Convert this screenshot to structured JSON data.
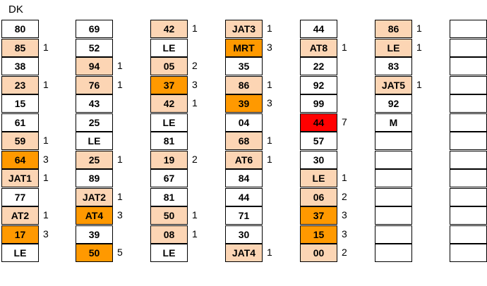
{
  "header": {
    "title": "DK"
  },
  "columns": [
    {
      "cells": [
        {
          "text": "80",
          "count": "",
          "level": "none"
        },
        {
          "text": "85",
          "count": "1",
          "level": "light"
        },
        {
          "text": "38",
          "count": "",
          "level": "none"
        },
        {
          "text": "23",
          "count": "1",
          "level": "light"
        },
        {
          "text": "15",
          "count": "",
          "level": "none"
        },
        {
          "text": "61",
          "count": "",
          "level": "none"
        },
        {
          "text": "59",
          "count": "1",
          "level": "light"
        },
        {
          "text": "64",
          "count": "3",
          "level": "orange"
        },
        {
          "text": "JAT1",
          "count": "1",
          "level": "light"
        },
        {
          "text": "77",
          "count": "",
          "level": "none"
        },
        {
          "text": "AT2",
          "count": "1",
          "level": "light"
        },
        {
          "text": "17",
          "count": "3",
          "level": "orange"
        },
        {
          "text": "LE",
          "count": "",
          "level": "none"
        }
      ]
    },
    {
      "cells": [
        {
          "text": "69",
          "count": "",
          "level": "none"
        },
        {
          "text": "52",
          "count": "",
          "level": "none"
        },
        {
          "text": "94",
          "count": "1",
          "level": "light"
        },
        {
          "text": "76",
          "count": "1",
          "level": "light"
        },
        {
          "text": "43",
          "count": "",
          "level": "none"
        },
        {
          "text": "25",
          "count": "",
          "level": "none"
        },
        {
          "text": "LE",
          "count": "",
          "level": "none"
        },
        {
          "text": "25",
          "count": "1",
          "level": "light"
        },
        {
          "text": "89",
          "count": "",
          "level": "none"
        },
        {
          "text": "JAT2",
          "count": "1",
          "level": "light"
        },
        {
          "text": "AT4",
          "count": "3",
          "level": "orange"
        },
        {
          "text": "39",
          "count": "",
          "level": "none"
        },
        {
          "text": "50",
          "count": "5",
          "level": "orange"
        }
      ]
    },
    {
      "cells": [
        {
          "text": "42",
          "count": "1",
          "level": "light"
        },
        {
          "text": "LE",
          "count": "",
          "level": "none"
        },
        {
          "text": "05",
          "count": "2",
          "level": "light"
        },
        {
          "text": "37",
          "count": "3",
          "level": "orange"
        },
        {
          "text": "42",
          "count": "1",
          "level": "light"
        },
        {
          "text": "LE",
          "count": "",
          "level": "none"
        },
        {
          "text": "81",
          "count": "",
          "level": "none"
        },
        {
          "text": "19",
          "count": "2",
          "level": "light"
        },
        {
          "text": "67",
          "count": "",
          "level": "none"
        },
        {
          "text": "81",
          "count": "",
          "level": "none"
        },
        {
          "text": "50",
          "count": "1",
          "level": "light"
        },
        {
          "text": "08",
          "count": "1",
          "level": "light"
        },
        {
          "text": "LE",
          "count": "",
          "level": "none"
        }
      ]
    },
    {
      "cells": [
        {
          "text": "JAT3",
          "count": "1",
          "level": "light"
        },
        {
          "text": "MRT",
          "count": "3",
          "level": "orange"
        },
        {
          "text": "35",
          "count": "",
          "level": "none"
        },
        {
          "text": "86",
          "count": "1",
          "level": "light"
        },
        {
          "text": "39",
          "count": "3",
          "level": "orange"
        },
        {
          "text": "04",
          "count": "",
          "level": "none"
        },
        {
          "text": "68",
          "count": "1",
          "level": "light"
        },
        {
          "text": "AT6",
          "count": "1",
          "level": "light"
        },
        {
          "text": "84",
          "count": "",
          "level": "none"
        },
        {
          "text": "44",
          "count": "",
          "level": "none"
        },
        {
          "text": "71",
          "count": "",
          "level": "none"
        },
        {
          "text": "30",
          "count": "",
          "level": "none"
        },
        {
          "text": "JAT4",
          "count": "1",
          "level": "light"
        }
      ]
    },
    {
      "cells": [
        {
          "text": "44",
          "count": "",
          "level": "none"
        },
        {
          "text": "AT8",
          "count": "1",
          "level": "light"
        },
        {
          "text": "22",
          "count": "",
          "level": "none"
        },
        {
          "text": "92",
          "count": "",
          "level": "none"
        },
        {
          "text": "99",
          "count": "",
          "level": "none"
        },
        {
          "text": "44",
          "count": "7",
          "level": "red"
        },
        {
          "text": "57",
          "count": "",
          "level": "none"
        },
        {
          "text": "30",
          "count": "",
          "level": "none"
        },
        {
          "text": "LE",
          "count": "1",
          "level": "light"
        },
        {
          "text": "06",
          "count": "2",
          "level": "light"
        },
        {
          "text": "37",
          "count": "3",
          "level": "orange"
        },
        {
          "text": "15",
          "count": "3",
          "level": "orange"
        },
        {
          "text": "00",
          "count": "2",
          "level": "light"
        }
      ]
    },
    {
      "cells": [
        {
          "text": "86",
          "count": "1",
          "level": "light"
        },
        {
          "text": "LE",
          "count": "1",
          "level": "light"
        },
        {
          "text": "83",
          "count": "",
          "level": "none"
        },
        {
          "text": "JAT5",
          "count": "1",
          "level": "light"
        },
        {
          "text": "92",
          "count": "",
          "level": "none"
        },
        {
          "text": "M",
          "count": "",
          "level": "none"
        },
        {
          "text": "",
          "count": "",
          "level": "none"
        },
        {
          "text": "",
          "count": "",
          "level": "none"
        },
        {
          "text": "",
          "count": "",
          "level": "none"
        },
        {
          "text": "",
          "count": "",
          "level": "none"
        },
        {
          "text": "",
          "count": "",
          "level": "none"
        },
        {
          "text": "",
          "count": "",
          "level": "none"
        },
        {
          "text": "",
          "count": "",
          "level": "none"
        }
      ]
    },
    {
      "cells": [
        {
          "text": "",
          "count": "",
          "level": "none"
        },
        {
          "text": "",
          "count": "",
          "level": "none"
        },
        {
          "text": "",
          "count": "",
          "level": "none"
        },
        {
          "text": "",
          "count": "",
          "level": "none"
        },
        {
          "text": "",
          "count": "",
          "level": "none"
        },
        {
          "text": "",
          "count": "",
          "level": "none"
        },
        {
          "text": "",
          "count": "",
          "level": "none"
        },
        {
          "text": "",
          "count": "",
          "level": "none"
        },
        {
          "text": "",
          "count": "",
          "level": "none"
        },
        {
          "text": "",
          "count": "",
          "level": "none"
        },
        {
          "text": "",
          "count": "",
          "level": "none"
        },
        {
          "text": "",
          "count": "",
          "level": "none"
        },
        {
          "text": "",
          "count": "",
          "level": "none"
        }
      ]
    }
  ],
  "colors": {
    "none": "#ffffff",
    "light": "#fcd5b4",
    "orange": "#ff9900",
    "red": "#ff0000"
  }
}
